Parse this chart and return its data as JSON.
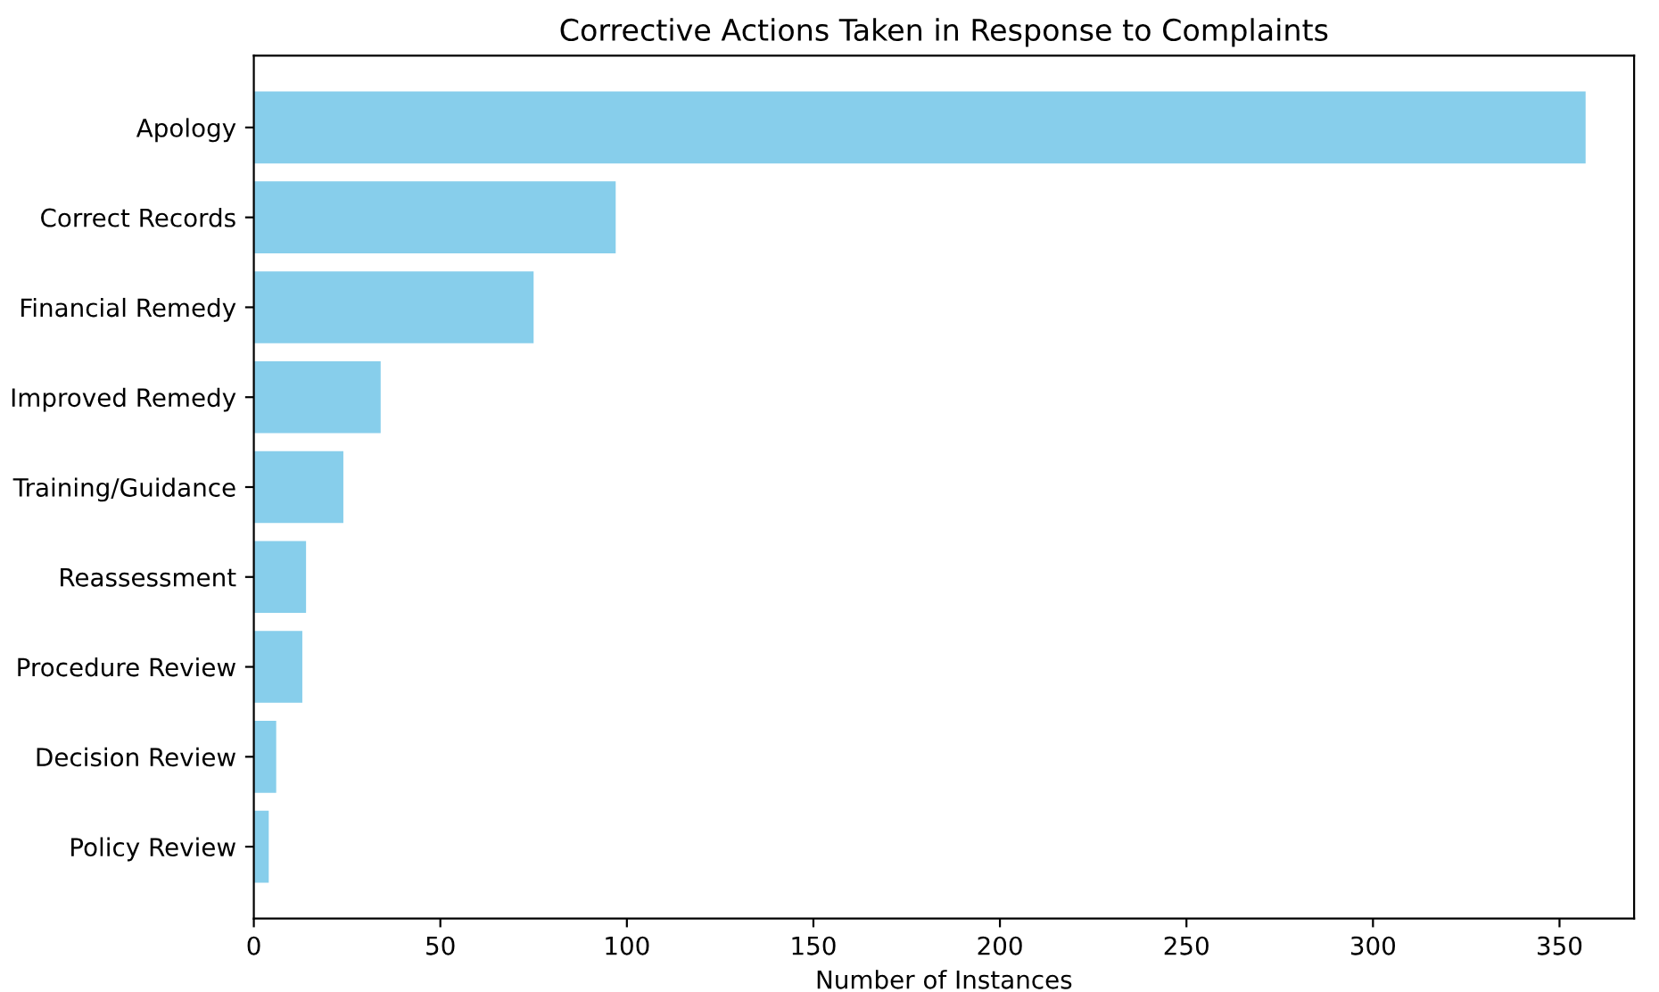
{
  "chart_data": {
    "type": "bar",
    "orientation": "horizontal",
    "title": "Corrective Actions Taken in Response to Complaints",
    "xlabel": "Number of Instances",
    "categories": [
      "Apology",
      "Correct Records",
      "Financial Remedy",
      "Improved Remedy",
      "Training/Guidance",
      "Reassessment",
      "Procedure Review",
      "Decision Review",
      "Policy Review"
    ],
    "values": [
      357,
      97,
      75,
      34,
      24,
      14,
      13,
      6,
      4
    ],
    "color": "#87ceeb",
    "xlim": [
      0,
      370
    ],
    "xticks": [
      0,
      50,
      100,
      150,
      200,
      250,
      300,
      350
    ],
    "grid": false,
    "legend": false
  }
}
